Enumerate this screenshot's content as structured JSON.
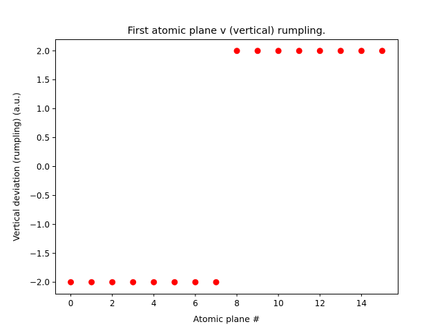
{
  "chart_data": {
    "type": "scatter",
    "title": "First atomic plane v (vertical) rumpling.",
    "xlabel": "Atomic plane #",
    "ylabel": "Vertical deviation (rumpling) (a.u.)",
    "xlim": [
      -0.75,
      15.75
    ],
    "ylim": [
      -2.2,
      2.2
    ],
    "xticks": [
      0,
      2,
      4,
      6,
      8,
      10,
      12,
      14
    ],
    "xtick_labels": [
      "0",
      "2",
      "4",
      "6",
      "8",
      "10",
      "12",
      "14"
    ],
    "yticks": [
      -2.0,
      -1.5,
      -1.0,
      -0.5,
      0.0,
      0.5,
      1.0,
      1.5,
      2.0
    ],
    "ytick_labels": [
      "−2.0",
      "−1.5",
      "−1.0",
      "−0.5",
      "0.0",
      "0.5",
      "1.0",
      "1.5",
      "2.0"
    ],
    "grid": false,
    "series": [
      {
        "color": "#ff0000",
        "marker": "circle",
        "x": [
          0,
          1,
          2,
          3,
          4,
          5,
          6,
          7,
          8,
          9,
          10,
          11,
          12,
          13,
          14,
          15
        ],
        "y": [
          -2,
          -2,
          -2,
          -2,
          -2,
          -2,
          -2,
          -2,
          2,
          2,
          2,
          2,
          2,
          2,
          2,
          2
        ]
      }
    ]
  }
}
